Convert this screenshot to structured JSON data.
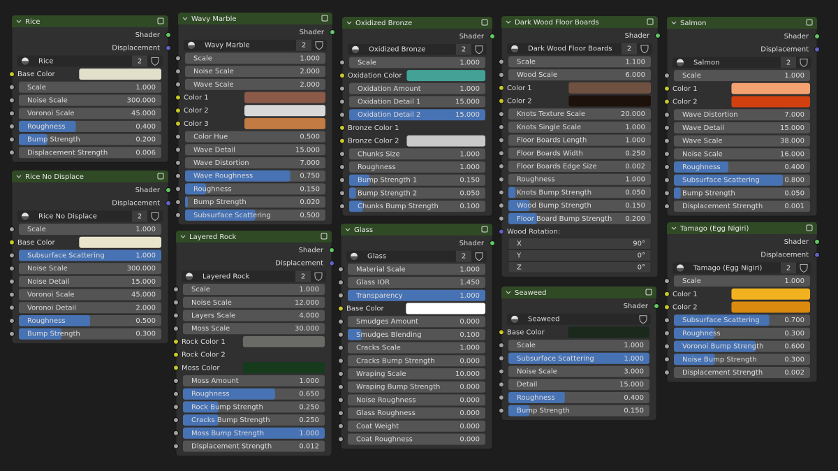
{
  "nodes": [
    {
      "title": "Rice",
      "outputs": [
        "Shader",
        "Displacement"
      ],
      "material": {
        "name": "Rice",
        "users": 2
      },
      "rows": [
        {
          "label": "Base Color",
          "kind": "color",
          "color": "#e2dfcb"
        },
        {
          "label": "Scale",
          "value": "1.000",
          "kind": "field"
        },
        {
          "label": "Noise Scale",
          "value": "300.000",
          "kind": "field"
        },
        {
          "label": "Voronoi Scale",
          "value": "45.000",
          "kind": "field"
        },
        {
          "label": "Roughness",
          "value": "0.400",
          "kind": "slider"
        },
        {
          "label": "Bump Strength",
          "value": "0.200",
          "kind": "slider"
        },
        {
          "label": "Displacement Strength",
          "value": "0.006",
          "kind": "field"
        }
      ]
    },
    {
      "title": "Rice No Displace",
      "outputs": [
        "Shader",
        "Displacement"
      ],
      "material": {
        "name": "Rice No Displace",
        "users": 2
      },
      "rows": [
        {
          "label": "Scale",
          "value": "1.000",
          "kind": "field"
        },
        {
          "label": "Base Color",
          "kind": "color",
          "color": "#e9e5cc"
        },
        {
          "label": "Subsurface Scattering",
          "value": "1.000",
          "kind": "slider"
        },
        {
          "label": "Noise Scale",
          "value": "300.000",
          "kind": "field"
        },
        {
          "label": "Noise Detail",
          "value": "15.000",
          "kind": "field"
        },
        {
          "label": "Voronoi Scale",
          "value": "45.000",
          "kind": "field"
        },
        {
          "label": "Voronoi Detail",
          "value": "2.000",
          "kind": "field"
        },
        {
          "label": "Roughness",
          "value": "0.500",
          "kind": "slider"
        },
        {
          "label": "Bump Strength",
          "value": "0.300",
          "kind": "slider"
        }
      ]
    },
    {
      "title": "Wavy Marble",
      "outputs": [
        "Shader"
      ],
      "material": {
        "name": "Wavy Marble",
        "users": 2
      },
      "rows": [
        {
          "label": "Scale",
          "value": "1.000",
          "kind": "field"
        },
        {
          "label": "Noise Scale",
          "value": "2.000",
          "kind": "field"
        },
        {
          "label": "Wave Scale",
          "value": "2.000",
          "kind": "field"
        },
        {
          "label": "Color 1",
          "kind": "color",
          "color": "#8c5a48"
        },
        {
          "label": "Color 2",
          "kind": "color",
          "color": "#d9d9d9"
        },
        {
          "label": "Color 3",
          "kind": "color",
          "color": "#c27b42"
        },
        {
          "label": "Color Hue",
          "value": "0.500",
          "kind": "field"
        },
        {
          "label": "Wave Detail",
          "value": "15.000",
          "kind": "field"
        },
        {
          "label": "Wave Distortion",
          "value": "7.000",
          "kind": "field"
        },
        {
          "label": "Wave Roughness",
          "value": "0.750",
          "kind": "slider"
        },
        {
          "label": "Roughness",
          "value": "0.150",
          "kind": "slider"
        },
        {
          "label": "Bump Strength",
          "value": "0.020",
          "kind": "slider"
        },
        {
          "label": "Subsurface Scattering",
          "value": "0.500",
          "kind": "slider"
        }
      ]
    },
    {
      "title": "Layered Rock",
      "outputs": [
        "Shader",
        "Displacement"
      ],
      "material": {
        "name": "Layered Rock",
        "users": 2
      },
      "rows": [
        {
          "label": "Scale",
          "value": "1.000",
          "kind": "field"
        },
        {
          "label": "Noise Scale",
          "value": "12.000",
          "kind": "field"
        },
        {
          "label": "Layers Scale",
          "value": "4.000",
          "kind": "field"
        },
        {
          "label": "Moss Scale",
          "value": "30.000",
          "kind": "field"
        },
        {
          "label": "Rock Color 1",
          "kind": "color",
          "color": "#6a6a66"
        },
        {
          "label": "Rock Color 2",
          "kind": "input"
        },
        {
          "label": "Moss Color",
          "kind": "color",
          "color": "#163a1c"
        },
        {
          "label": "Moss Amount",
          "value": "1.000",
          "kind": "field"
        },
        {
          "label": "Roughness",
          "value": "0.650",
          "kind": "slider"
        },
        {
          "label": "Rock Bump Strength",
          "value": "0.250",
          "kind": "slider"
        },
        {
          "label": "Cracks Bump Strength",
          "value": "0.250",
          "kind": "slider"
        },
        {
          "label": "Moss Bump Strength",
          "value": "1.000",
          "kind": "slider"
        },
        {
          "label": "Displacement Strength",
          "value": "0.012",
          "kind": "field"
        }
      ]
    },
    {
      "title": "Oxidized Bronze",
      "outputs": [
        "Shader"
      ],
      "material": {
        "name": "Oxidized Bronze",
        "users": 2
      },
      "rows": [
        {
          "label": "Scale",
          "value": "1.000",
          "kind": "field"
        },
        {
          "label": "Oxidation Color",
          "kind": "color",
          "color": "#43a195"
        },
        {
          "label": "Oxidation Amount",
          "value": "1.000",
          "kind": "field"
        },
        {
          "label": "Oxidation Detail 1",
          "value": "15.000",
          "kind": "field"
        },
        {
          "label": "Oxidation Detail 2",
          "value": "15.000",
          "kind": "selected"
        },
        {
          "label": "Bronze Color 1",
          "kind": "input"
        },
        {
          "label": "Bronze Color 2",
          "kind": "color",
          "color": "#c9c9c9"
        },
        {
          "label": "Chunks Size",
          "value": "1.000",
          "kind": "field"
        },
        {
          "label": "Roughness",
          "value": "1.000",
          "kind": "field"
        },
        {
          "label": "Bump Strength 1",
          "value": "0.150",
          "kind": "slider"
        },
        {
          "label": "Bump Strength 2",
          "value": "0.050",
          "kind": "slider"
        },
        {
          "label": "Chunks Bump Strength",
          "value": "0.100",
          "kind": "slider"
        }
      ]
    },
    {
      "title": "Glass",
      "outputs": [
        "Shader"
      ],
      "material": {
        "name": "Glass",
        "users": 2
      },
      "rows": [
        {
          "label": "Material Scale",
          "value": "1.000",
          "kind": "field"
        },
        {
          "label": "Glass IOR",
          "value": "1.450",
          "kind": "field"
        },
        {
          "label": "Transparency",
          "value": "1.000",
          "kind": "slider"
        },
        {
          "label": "Base Color",
          "kind": "color",
          "color": "#ffffff"
        },
        {
          "label": "Smudges Amount",
          "value": "0.000",
          "kind": "field"
        },
        {
          "label": "Smudges Blending",
          "value": "0.100",
          "kind": "slider"
        },
        {
          "label": "Cracks Scale",
          "value": "1.000",
          "kind": "field"
        },
        {
          "label": "Cracks Bump Strength",
          "value": "0.000",
          "kind": "field"
        },
        {
          "label": "Wraping Scale",
          "value": "10.000",
          "kind": "field"
        },
        {
          "label": "Wraping Bump Strength",
          "value": "0.000",
          "kind": "field"
        },
        {
          "label": "Noise Roughness",
          "value": "0.000",
          "kind": "field"
        },
        {
          "label": "Glass Roughness",
          "value": "0.000",
          "kind": "field"
        },
        {
          "label": "Coat Weight",
          "value": "0.000",
          "kind": "field"
        },
        {
          "label": "Coat Roughness",
          "value": "0.000",
          "kind": "field"
        }
      ]
    },
    {
      "title": "Dark Wood Floor Boards",
      "outputs": [
        "Shader"
      ],
      "material": {
        "name": "Dark Wood Floor Boards",
        "users": 2
      },
      "rows": [
        {
          "label": "Scale",
          "value": "1.100",
          "kind": "field"
        },
        {
          "label": "Wood Scale",
          "value": "6.000",
          "kind": "field"
        },
        {
          "label": "Color 1",
          "kind": "color",
          "color": "#6f5142"
        },
        {
          "label": "Color 2",
          "kind": "color",
          "color": "#1d110b"
        },
        {
          "label": "Knots Texture Scale",
          "value": "20.000",
          "kind": "field"
        },
        {
          "label": "Knots Single Scale",
          "value": "1.000",
          "kind": "field"
        },
        {
          "label": "Floor Boards Length",
          "value": "1.000",
          "kind": "field"
        },
        {
          "label": "Floor Boards Width",
          "value": "0.250",
          "kind": "field"
        },
        {
          "label": "Floor Boards Edge Size",
          "value": "0.002",
          "kind": "field"
        },
        {
          "label": "Roughness",
          "value": "1.000",
          "kind": "field"
        },
        {
          "label": "Knots Bump Strength",
          "value": "0.050",
          "kind": "slider"
        },
        {
          "label": "Wood Bump Strength",
          "value": "0.150",
          "kind": "slider"
        },
        {
          "label": "Floor Board Bump Strength",
          "value": "0.200",
          "kind": "slider"
        },
        {
          "label": "Wood Rotation:",
          "kind": "vector",
          "components": [
            {
              "label": "X",
              "value": "90°"
            },
            {
              "label": "Y",
              "value": "0°"
            },
            {
              "label": "Z",
              "value": "0°"
            }
          ]
        }
      ]
    },
    {
      "title": "Seaweed",
      "outputs": [
        "Shader"
      ],
      "material": {
        "name": "Seaweed"
      },
      "rows": [
        {
          "label": "Base Color",
          "kind": "color",
          "color": "#1b281c"
        },
        {
          "label": "Scale",
          "value": "1.000",
          "kind": "field"
        },
        {
          "label": "Subsurface Scattering",
          "value": "1.000",
          "kind": "slider"
        },
        {
          "label": "Noise Scale",
          "value": "3.000",
          "kind": "field"
        },
        {
          "label": "Detail",
          "value": "15.000",
          "kind": "field"
        },
        {
          "label": "Roughness",
          "value": "0.400",
          "kind": "slider"
        },
        {
          "label": "Bump Strength",
          "value": "0.150",
          "kind": "slider"
        }
      ]
    },
    {
      "title": "Salmon",
      "outputs": [
        "Shader",
        "Displacement"
      ],
      "material": {
        "name": "Salmon",
        "users": 2
      },
      "rows": [
        {
          "label": "Scale",
          "value": "1.000",
          "kind": "field"
        },
        {
          "label": "Color 1",
          "kind": "color",
          "color": "#f4a272"
        },
        {
          "label": "Color 2",
          "kind": "color",
          "color": "#d2400f"
        },
        {
          "label": "Wave Distortion",
          "value": "7.000",
          "kind": "field"
        },
        {
          "label": "Wave Detail",
          "value": "15.000",
          "kind": "field"
        },
        {
          "label": "Wave Scale",
          "value": "38.000",
          "kind": "field"
        },
        {
          "label": "Noise Scale",
          "value": "16.000",
          "kind": "field"
        },
        {
          "label": "Roughness",
          "value": "0.400",
          "kind": "slider"
        },
        {
          "label": "Subsurface Scattering",
          "value": "0.800",
          "kind": "slider"
        },
        {
          "label": "Bump Strength",
          "value": "0.050",
          "kind": "slider"
        },
        {
          "label": "Displacement Strength",
          "value": "0.001",
          "kind": "field"
        }
      ]
    },
    {
      "title": "Tamago (Egg Nigiri)",
      "outputs": [
        "Shader",
        "Displacement"
      ],
      "material": {
        "name": "Tamago (Egg Nigiri)",
        "users": 2
      },
      "rows": [
        {
          "label": "Scale",
          "value": "1.000",
          "kind": "field"
        },
        {
          "label": "Color 1",
          "kind": "color",
          "color": "#f2b11e"
        },
        {
          "label": "Color 2",
          "kind": "color",
          "color": "#d98a0f"
        },
        {
          "label": "Subsurface Scattering",
          "value": "0.700",
          "kind": "slider"
        },
        {
          "label": "Roughness",
          "value": "0.300",
          "kind": "slider"
        },
        {
          "label": "Voronoi Bump Strength",
          "value": "0.600",
          "kind": "slider"
        },
        {
          "label": "Noise Bump Strength",
          "value": "0.300",
          "kind": "slider"
        },
        {
          "label": "Displacement Strength",
          "value": "0.002",
          "kind": "field"
        }
      ]
    }
  ]
}
